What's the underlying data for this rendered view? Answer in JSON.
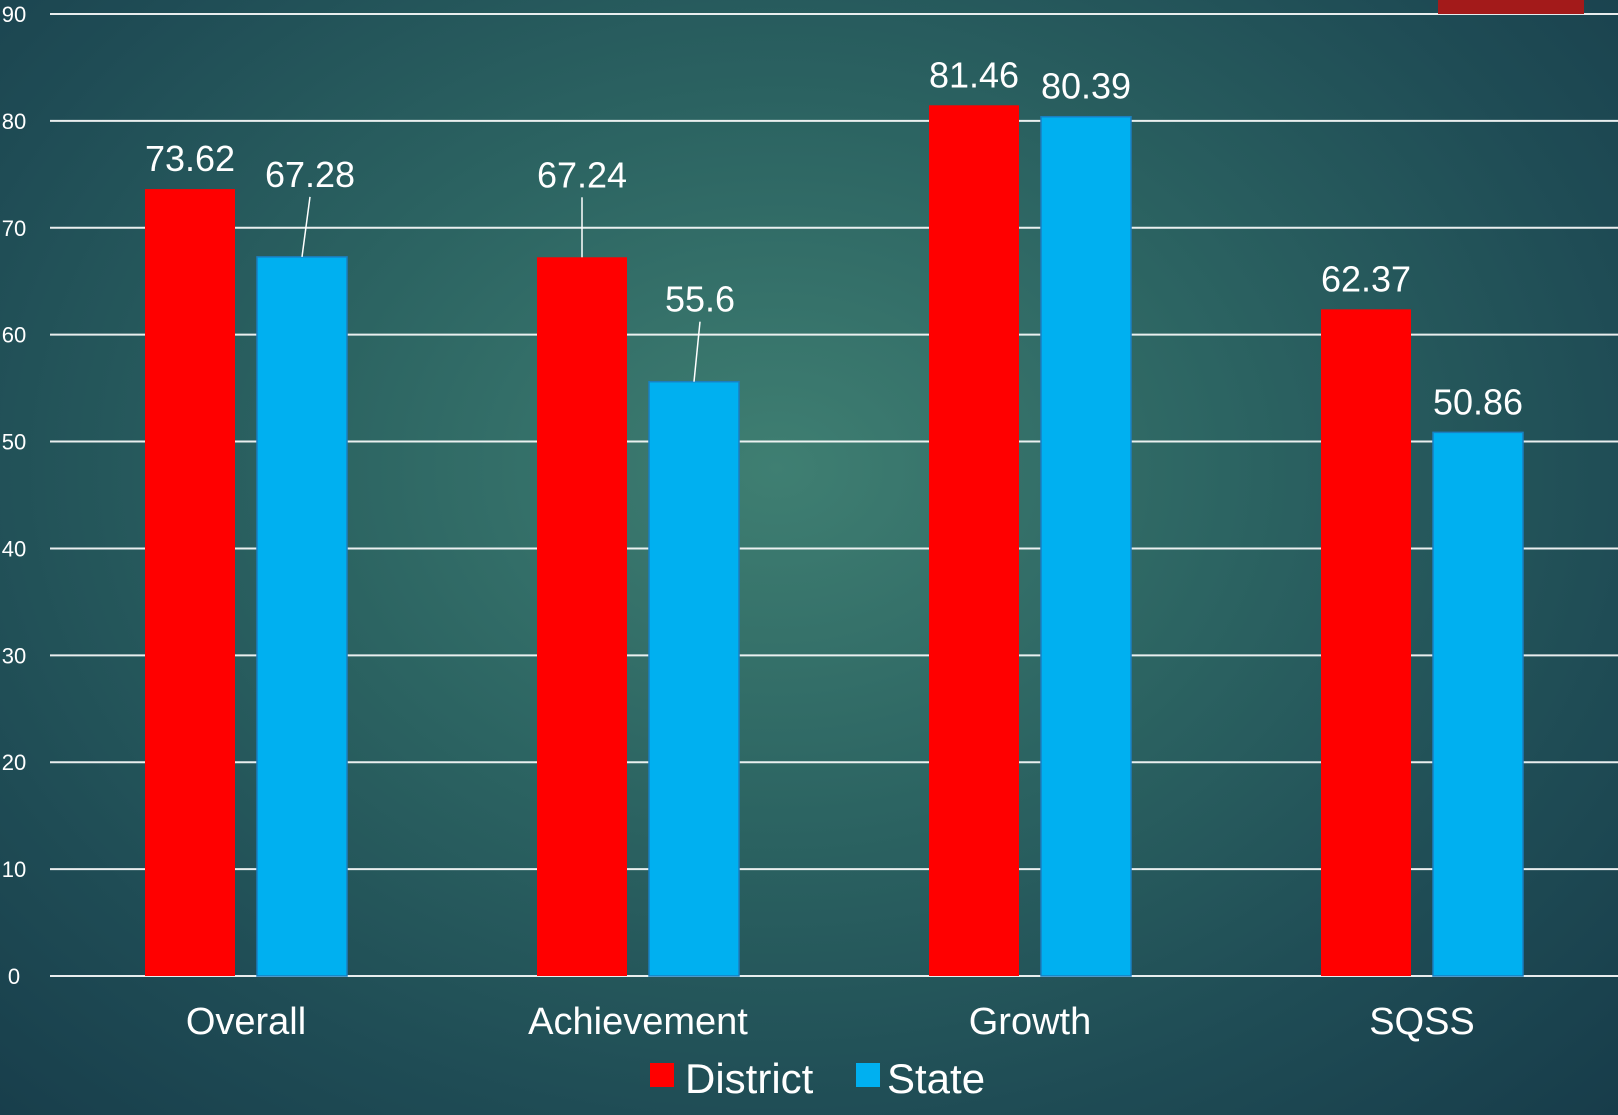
{
  "colors": {
    "district": "#ff0000",
    "state": "#00b0f0",
    "accent": "#a31a1a"
  },
  "chart_data": {
    "type": "bar",
    "categories": [
      "Overall",
      "Achievement",
      "Growth",
      "SQSS"
    ],
    "series": [
      {
        "name": "District",
        "values": [
          73.62,
          67.24,
          81.46,
          62.37
        ]
      },
      {
        "name": "State",
        "values": [
          67.28,
          55.6,
          80.39,
          50.86
        ]
      }
    ],
    "data_labels": {
      "District": [
        "73.62",
        "67.24",
        "81.46",
        "62.37"
      ],
      "State": [
        "67.28",
        "55.6",
        "80.39",
        "50.86"
      ]
    },
    "yticks": [
      0,
      10,
      20,
      30,
      40,
      50,
      60,
      70,
      80,
      90
    ],
    "ylim": [
      0,
      90
    ],
    "grid": true,
    "legend_position": "bottom"
  }
}
